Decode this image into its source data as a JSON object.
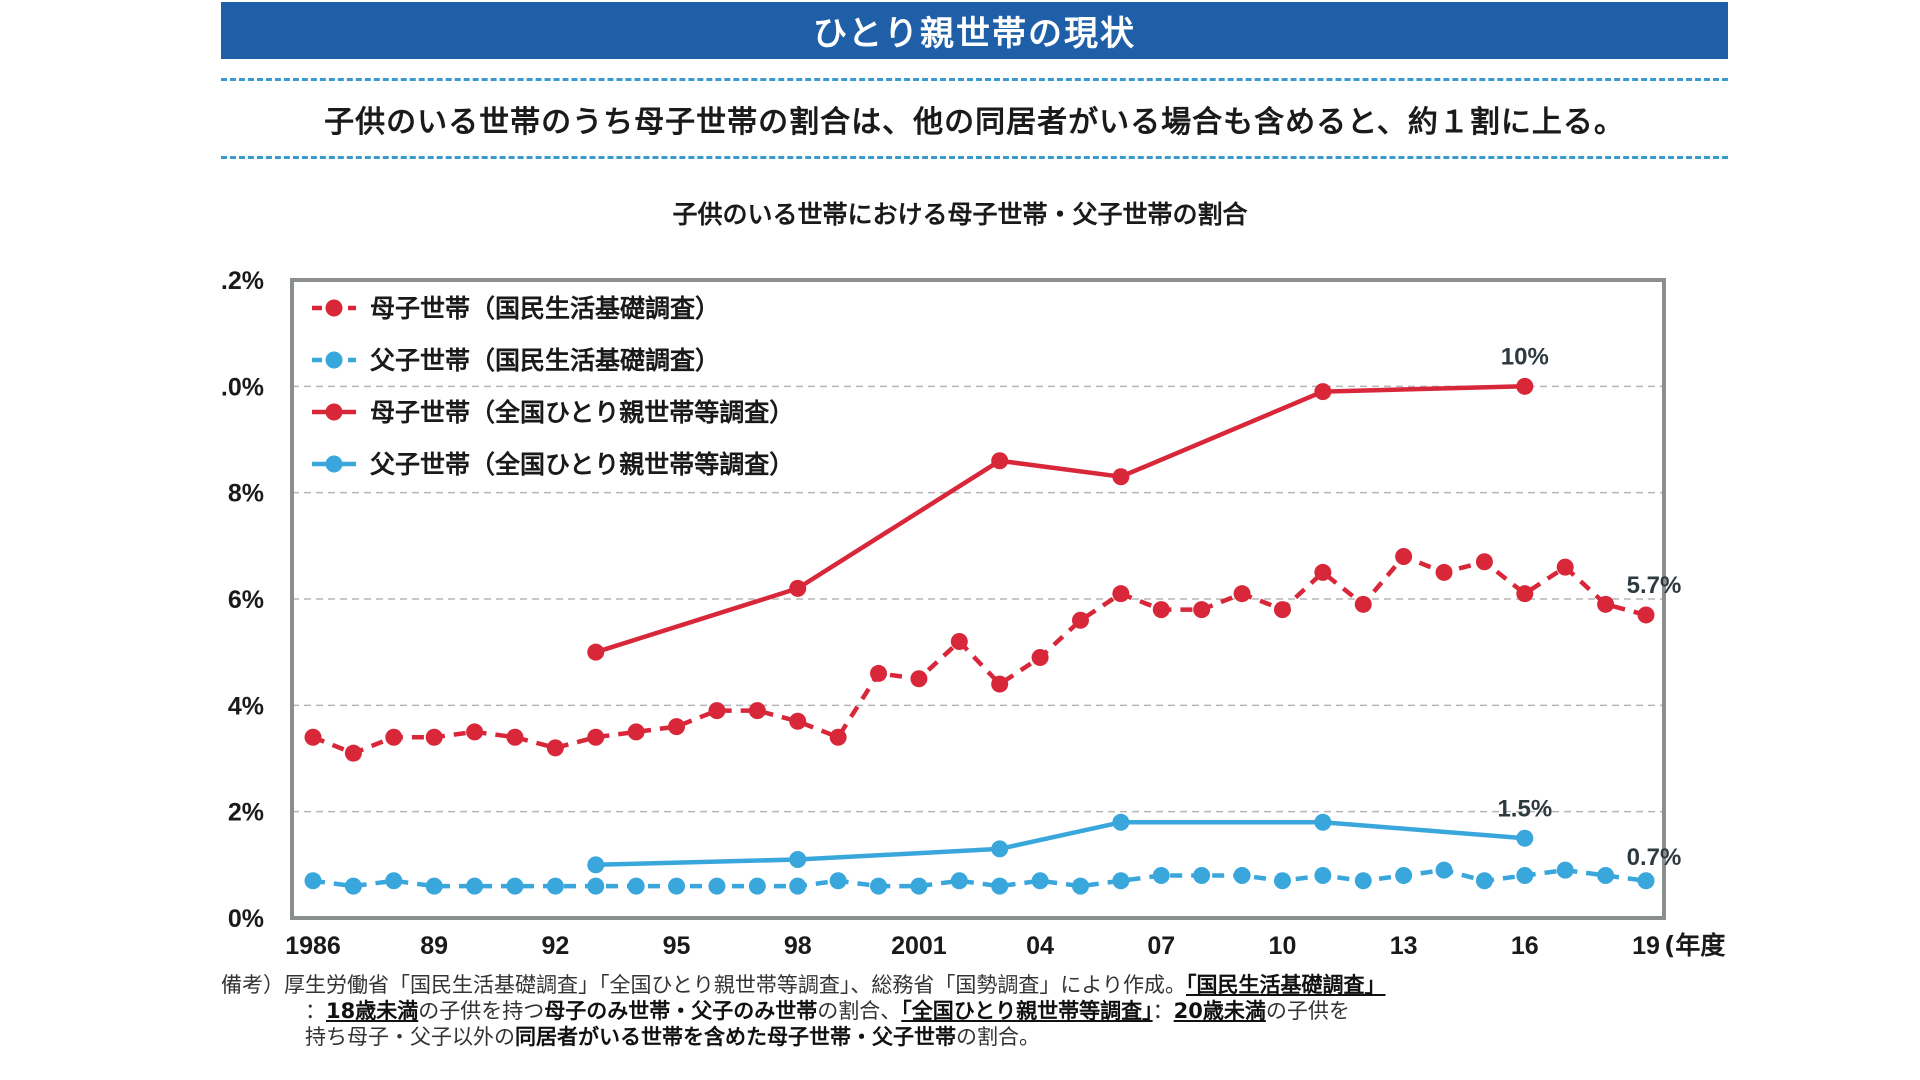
{
  "header": {
    "banner_title": "ひとり親世帯の現状",
    "headline": "子供のいる世帯のうち母子世帯の割合は、他の同居者がいる場合も含めると、約１割に上る。"
  },
  "chart_data": {
    "type": "line",
    "title": "子供のいる世帯における母子世帯・父子世帯の割合",
    "xlabel": "(年度",
    "ylabel": "",
    "ylim": [
      0,
      12
    ],
    "yticks": [
      0,
      2,
      4,
      6,
      8,
      10,
      12
    ],
    "ytick_labels": [
      "0%",
      "2%",
      "4%",
      "6%",
      "8%",
      ".0%",
      ".2%"
    ],
    "xlim": [
      1986,
      2019
    ],
    "xticks": [
      1986,
      1989,
      1992,
      1995,
      1998,
      2001,
      2004,
      2007,
      2010,
      2013,
      2016,
      2019
    ],
    "xtick_labels": [
      "1986",
      "89",
      "92",
      "95",
      "98",
      "2001",
      "04",
      "07",
      "10",
      "13",
      "16",
      "19"
    ],
    "grid": "horizontal-dashed",
    "legend": "top-left",
    "series": [
      {
        "name": "母子世帯（国民生活基礎調査）",
        "style": "dashed",
        "color": "#d9273a",
        "x": [
          1986,
          1987,
          1988,
          1989,
          1990,
          1991,
          1992,
          1993,
          1994,
          1995,
          1996,
          1997,
          1998,
          1999,
          2000,
          2001,
          2002,
          2003,
          2004,
          2005,
          2006,
          2007,
          2008,
          2009,
          2010,
          2011,
          2012,
          2013,
          2014,
          2015,
          2016,
          2017,
          2018,
          2019
        ],
        "values": [
          3.4,
          3.1,
          3.4,
          3.4,
          3.5,
          3.4,
          3.2,
          3.4,
          3.5,
          3.6,
          3.9,
          3.9,
          3.7,
          3.4,
          4.6,
          4.5,
          5.2,
          4.4,
          4.9,
          5.6,
          6.1,
          5.8,
          5.8,
          6.1,
          5.8,
          6.5,
          5.9,
          6.8,
          6.5,
          6.7,
          6.1,
          6.6,
          5.9,
          5.7
        ],
        "end_label": "5.7%"
      },
      {
        "name": "父子世帯（国民生活基礎調査）",
        "style": "dashed",
        "color": "#3aa7dc",
        "x": [
          1986,
          1987,
          1988,
          1989,
          1990,
          1991,
          1992,
          1993,
          1994,
          1995,
          1996,
          1997,
          1998,
          1999,
          2000,
          2001,
          2002,
          2003,
          2004,
          2005,
          2006,
          2007,
          2008,
          2009,
          2010,
          2011,
          2012,
          2013,
          2014,
          2015,
          2016,
          2017,
          2018,
          2019
        ],
        "values": [
          0.7,
          0.6,
          0.7,
          0.6,
          0.6,
          0.6,
          0.6,
          0.6,
          0.6,
          0.6,
          0.6,
          0.6,
          0.6,
          0.7,
          0.6,
          0.6,
          0.7,
          0.6,
          0.7,
          0.6,
          0.7,
          0.8,
          0.8,
          0.8,
          0.7,
          0.8,
          0.7,
          0.8,
          0.9,
          0.7,
          0.8,
          0.9,
          0.8,
          0.7
        ],
        "end_label": "0.7%"
      },
      {
        "name": "母子世帯（全国ひとり親世帯等調査）",
        "style": "solid",
        "color": "#d9273a",
        "x": [
          1993,
          1998,
          2003,
          2006,
          2011,
          2016
        ],
        "values": [
          5.0,
          6.2,
          8.6,
          8.3,
          9.9,
          10.0
        ],
        "end_label": "10%"
      },
      {
        "name": "父子世帯（全国ひとり親世帯等調査）",
        "style": "solid",
        "color": "#3aa7dc",
        "x": [
          1993,
          1998,
          2003,
          2006,
          2011,
          2016
        ],
        "values": [
          1.0,
          1.1,
          1.3,
          1.8,
          1.8,
          1.5
        ],
        "end_label": "1.5%"
      }
    ]
  },
  "note": {
    "prefix": "備考）",
    "line1_a": "厚生労働省「国民生活基礎調査」「全国ひとり親世帯等調査」、総務省「国勢調査」により作成。",
    "line1_b": "「国民生活基礎調査」",
    "line2_a": "：",
    "line2_b": "18歳未満",
    "line2_c": "の子供を持つ",
    "line2_d": "母子のみ世帯・父子のみ世帯",
    "line2_e": "の割合、",
    "line2_f": "「全国ひとり親世帯等調査」",
    "line2_g": "：",
    "line2_h": "20歳未満",
    "line2_i": "の子供を",
    "line3_a": "持ち母子・父子以外の",
    "line3_b": "同居者がいる世帯を含めた母子世帯・父子世帯",
    "line3_c": "の割合。"
  }
}
